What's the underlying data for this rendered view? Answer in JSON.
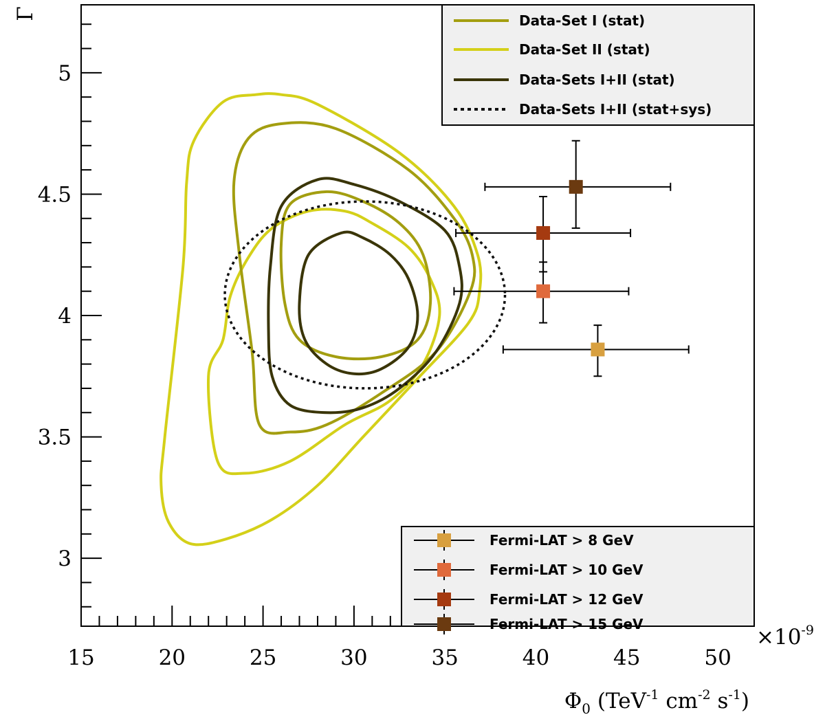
{
  "chart_data": {
    "type": "contour",
    "xlabel_parts": {
      "symbol": "Φ",
      "sub": "0",
      "unit_a": " (TeV",
      "sup1": "-1",
      "unit_b": " cm",
      "sup2": "-2",
      "unit_c": " s",
      "sup3": "-1",
      "close": ")"
    },
    "ylabel": "Γ",
    "x_multiplier": {
      "base": "×10",
      "exp": "-9"
    },
    "xlim": [
      15,
      52
    ],
    "ylim": [
      2.72,
      5.28
    ],
    "x_ticks": [
      15,
      20,
      25,
      30,
      35,
      40,
      45,
      50
    ],
    "y_ticks": [
      3,
      3.5,
      4,
      4.5,
      5
    ],
    "colors": {
      "set1": "#a39e10",
      "set2": "#d4d019",
      "combined": "#3a3508",
      "dotted": "#111111",
      "frame": "#000000",
      "legend_bg": "#f0f0f0"
    },
    "contours": [
      {
        "series": "set2",
        "points": [
          [
            24.6,
            4.91
          ],
          [
            22.8,
            4.88
          ],
          [
            21.2,
            4.72
          ],
          [
            20.8,
            4.55
          ],
          [
            20.6,
            4.2
          ],
          [
            19.6,
            3.5
          ],
          [
            19.4,
            3.3
          ],
          [
            19.8,
            3.15
          ],
          [
            21.0,
            3.06
          ],
          [
            23.0,
            3.08
          ],
          [
            25.5,
            3.16
          ],
          [
            28.0,
            3.3
          ],
          [
            30.5,
            3.5
          ],
          [
            33.5,
            3.74
          ],
          [
            36.3,
            3.97
          ],
          [
            36.9,
            4.1
          ],
          [
            36.8,
            4.25
          ],
          [
            35.5,
            4.45
          ],
          [
            32.5,
            4.67
          ],
          [
            28.0,
            4.87
          ],
          [
            26.0,
            4.91
          ]
        ]
      },
      {
        "series": "set2",
        "points": [
          [
            27.5,
            4.43
          ],
          [
            25.5,
            4.36
          ],
          [
            24.2,
            4.24
          ],
          [
            23.2,
            4.08
          ],
          [
            22.8,
            3.9
          ],
          [
            22.0,
            3.75
          ],
          [
            22.5,
            3.4
          ],
          [
            24.0,
            3.35
          ],
          [
            26.5,
            3.4
          ],
          [
            29.5,
            3.55
          ],
          [
            32.0,
            3.65
          ],
          [
            33.8,
            3.8
          ],
          [
            34.7,
            4.0
          ],
          [
            34.2,
            4.15
          ],
          [
            33.0,
            4.28
          ],
          [
            31.0,
            4.38
          ],
          [
            29.5,
            4.43
          ]
        ]
      },
      {
        "series": "set1",
        "points": [
          [
            26.0,
            4.79
          ],
          [
            24.2,
            4.73
          ],
          [
            23.4,
            4.55
          ],
          [
            23.7,
            4.25
          ],
          [
            24.4,
            3.85
          ],
          [
            24.8,
            3.55
          ],
          [
            26.5,
            3.52
          ],
          [
            28.5,
            3.55
          ],
          [
            31.5,
            3.68
          ],
          [
            34.5,
            3.85
          ],
          [
            36.4,
            4.1
          ],
          [
            36.5,
            4.25
          ],
          [
            35.5,
            4.4
          ],
          [
            33.0,
            4.6
          ],
          [
            29.0,
            4.77
          ]
        ]
      },
      {
        "series": "set1",
        "points": [
          [
            28.5,
            4.51
          ],
          [
            26.5,
            4.46
          ],
          [
            26.0,
            4.3
          ],
          [
            26.2,
            4.05
          ],
          [
            27.0,
            3.9
          ],
          [
            29.0,
            3.83
          ],
          [
            31.5,
            3.83
          ],
          [
            33.5,
            3.9
          ],
          [
            34.2,
            4.05
          ],
          [
            33.8,
            4.25
          ],
          [
            32.5,
            4.38
          ],
          [
            30.5,
            4.47
          ]
        ]
      },
      {
        "series": "combined",
        "points": [
          [
            28.0,
            4.56
          ],
          [
            26.0,
            4.45
          ],
          [
            25.4,
            4.2
          ],
          [
            25.3,
            3.95
          ],
          [
            25.5,
            3.75
          ],
          [
            26.5,
            3.63
          ],
          [
            28.5,
            3.6
          ],
          [
            30.5,
            3.62
          ],
          [
            32.5,
            3.7
          ],
          [
            34.5,
            3.85
          ],
          [
            35.8,
            4.05
          ],
          [
            35.8,
            4.2
          ],
          [
            35.0,
            4.35
          ],
          [
            32.5,
            4.47
          ],
          [
            30.0,
            4.54
          ]
        ]
      },
      {
        "series": "combined",
        "points": [
          [
            29.3,
            4.34
          ],
          [
            27.5,
            4.25
          ],
          [
            27.0,
            4.05
          ],
          [
            27.3,
            3.9
          ],
          [
            28.5,
            3.8
          ],
          [
            30.0,
            3.76
          ],
          [
            31.5,
            3.78
          ],
          [
            33.0,
            3.87
          ],
          [
            33.5,
            4.0
          ],
          [
            33.0,
            4.15
          ],
          [
            32.0,
            4.25
          ],
          [
            30.5,
            4.32
          ]
        ]
      }
    ],
    "ellipse": {
      "series": "dotted",
      "cx": 30.6,
      "cy": 4.085,
      "rx": 7.7,
      "ry": 0.385
    },
    "points": [
      {
        "name": "Fermi-LAT > 8  GeV",
        "x": 43.4,
        "y": 3.86,
        "xerr": [
          38.2,
          48.4
        ],
        "yerr": [
          3.75,
          3.96
        ],
        "color": "#d8a040"
      },
      {
        "name": "Fermi-LAT > 10 GeV",
        "x": 40.4,
        "y": 4.1,
        "xerr": [
          35.5,
          45.1
        ],
        "yerr": [
          3.97,
          4.22
        ],
        "color": "#e06a3c"
      },
      {
        "name": "Fermi-LAT > 12 GeV",
        "x": 40.4,
        "y": 4.34,
        "xerr": [
          35.6,
          45.2
        ],
        "yerr": [
          4.18,
          4.49
        ],
        "color": "#a53a10"
      },
      {
        "name": "Fermi-LAT > 15 GeV",
        "x": 42.2,
        "y": 4.53,
        "xerr": [
          37.2,
          47.4
        ],
        "yerr": [
          4.36,
          4.72
        ],
        "color": "#6b3a10"
      }
    ],
    "legend_lines": [
      {
        "label": "Data-Set I  (stat)",
        "series": "set1",
        "dash": false
      },
      {
        "label": "Data-Set II (stat)",
        "series": "set2",
        "dash": false
      },
      {
        "label": "Data-Sets I+II (stat)",
        "series": "combined",
        "dash": false
      },
      {
        "label": "Data-Sets I+II (stat+sys)",
        "series": "dotted",
        "dash": true
      }
    ]
  }
}
